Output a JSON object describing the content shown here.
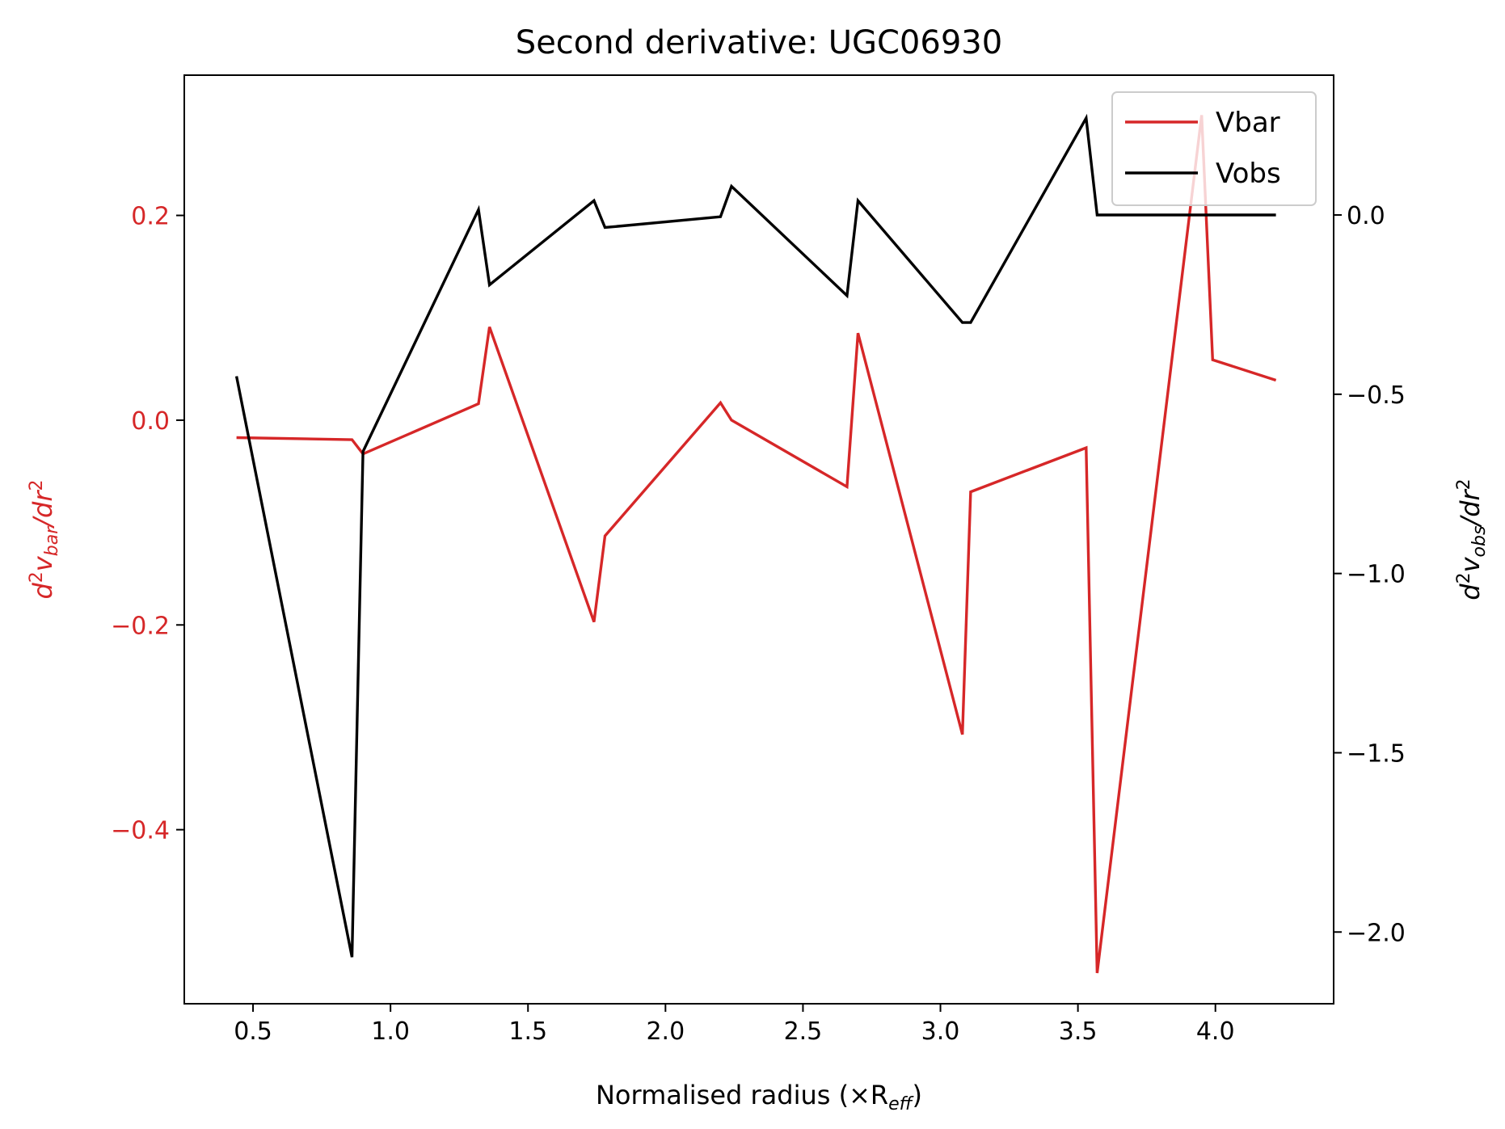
{
  "chart_data": {
    "type": "line",
    "title": "Second derivative: UGC06930",
    "xlabel": {
      "text": "Normalised radius (×R",
      "sub": "eff",
      "close": ")"
    },
    "ylabel_left": {
      "d": "d",
      "sup": "2",
      "v": "v",
      "sub": "bar",
      "rest": "/dr",
      "sup2": "2"
    },
    "ylabel_right": {
      "d": "d",
      "sup": "2",
      "v": "v",
      "sub": "obs",
      "rest": "/dr",
      "sup2": "2"
    },
    "xlim": [
      0.25,
      4.43
    ],
    "ylim_left": [
      -0.57,
      0.337
    ],
    "ylim_right": [
      -2.2,
      0.39
    ],
    "x_ticks": [
      0.5,
      1.0,
      1.5,
      2.0,
      2.5,
      3.0,
      3.5,
      4.0
    ],
    "x_tick_labels": [
      "0.5",
      "1.0",
      "1.5",
      "2.0",
      "2.5",
      "3.0",
      "3.5",
      "4.0"
    ],
    "y_left_ticks": [
      0.2,
      0.0,
      -0.2,
      -0.4
    ],
    "y_left_tick_labels": [
      "0.2",
      "0.0",
      "−0.2",
      "−0.4"
    ],
    "y_right_ticks": [
      0.0,
      -0.5,
      -1.0,
      -1.5,
      -2.0
    ],
    "y_right_tick_labels": [
      "0.0",
      "−0.5",
      "−1.0",
      "−1.5",
      "−2.0"
    ],
    "grid": false,
    "legend_position": "top-right",
    "series": [
      {
        "name": "Vbar",
        "axis": "left",
        "color": "#d62728",
        "x": [
          0.44,
          0.86,
          0.9,
          1.32,
          1.36,
          1.74,
          1.78,
          2.2,
          2.24,
          2.66,
          2.7,
          3.08,
          3.11,
          3.53,
          3.57,
          3.95,
          3.99,
          4.22
        ],
        "y": [
          -0.017,
          -0.019,
          -0.033,
          0.016,
          0.091,
          -0.197,
          -0.113,
          0.017,
          0.0,
          -0.065,
          0.085,
          -0.307,
          -0.07,
          -0.027,
          -0.54,
          0.298,
          0.059,
          0.039
        ]
      },
      {
        "name": "Vobs",
        "axis": "right",
        "color": "#000000",
        "x": [
          0.44,
          0.86,
          0.9,
          1.32,
          1.36,
          1.74,
          1.78,
          2.2,
          2.24,
          2.66,
          2.7,
          3.08,
          3.11,
          3.53,
          3.57,
          3.95,
          3.99,
          4.22
        ],
        "y": [
          -0.45,
          -2.07,
          -0.66,
          0.015,
          -0.195,
          0.04,
          -0.035,
          -0.005,
          0.08,
          -0.225,
          0.04,
          -0.3,
          -0.3,
          0.27,
          0.0,
          0.0,
          0.0,
          0.0
        ]
      }
    ]
  }
}
